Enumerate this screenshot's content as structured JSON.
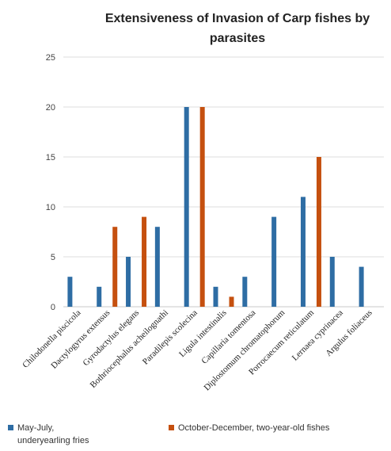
{
  "chart_data": {
    "type": "bar",
    "title_line1": "Extensiveness of Invasion of Carp fishes by",
    "title_line2": "parasites",
    "categories": [
      "Chilodonella piscicola",
      "Dactylogyrus extensus",
      "Gyrodactylus elegans",
      "Bothriocephalus acheilognathi",
      "Paradilepis scolecina",
      "Ligula intestinalis",
      "Capillaria tomentosa",
      "Diplostomum chromatophorum",
      "Porrocaecum reticulatum",
      "Lernaea cyprinacea",
      "Argulus foliaceus"
    ],
    "series": [
      {
        "name_line1": "May-July,",
        "name_line2": "underyearling fries",
        "color": "#2E6DA4",
        "values": [
          3,
          2,
          5,
          8,
          20,
          2,
          3,
          9,
          11,
          5,
          4
        ]
      },
      {
        "name_line1": "October-December, two-year-old fishes",
        "name_line2": "",
        "color": "#C5500F",
        "values": [
          0,
          8,
          9,
          0,
          20,
          1,
          0,
          0,
          15,
          0,
          0
        ]
      }
    ],
    "ylim": [
      0,
      25
    ],
    "yticks": [
      "0",
      "5",
      "10",
      "15",
      "20",
      "25"
    ],
    "grid": true,
    "legend_position": "bottom"
  }
}
